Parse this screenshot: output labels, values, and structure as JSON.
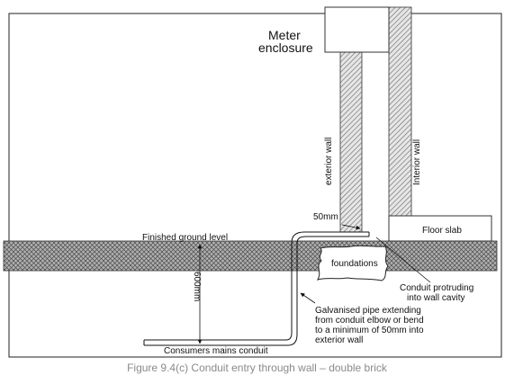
{
  "labels": {
    "meter_line1": "Meter",
    "meter_line2": "enclosure",
    "exterior_wall": "exterior wall",
    "interior_wall": "Interior wall",
    "dim_50mm": "50mm",
    "floor_slab": "Floor slab",
    "finished_ground": "Finished ground level",
    "foundations": "foundations",
    "dim_600mm": "600mm",
    "conduit_protruding_1": "Conduit protruding",
    "conduit_protruding_2": "into wall cavity",
    "galv_1": "Galvanised pipe extending",
    "galv_2": "from conduit elbow or bend",
    "galv_3": "to a minimum of 50mm into",
    "galv_4": "exterior wall",
    "consumers_mains": "Consumers mains conduit"
  },
  "caption": "Figure 9.4(c) Conduit entry through wall – double brick",
  "colors": {
    "line": "#111111",
    "ground_fill": "#9a9a9a",
    "brick_hatch": "#666666",
    "caption_text": "#8a8a8a"
  }
}
